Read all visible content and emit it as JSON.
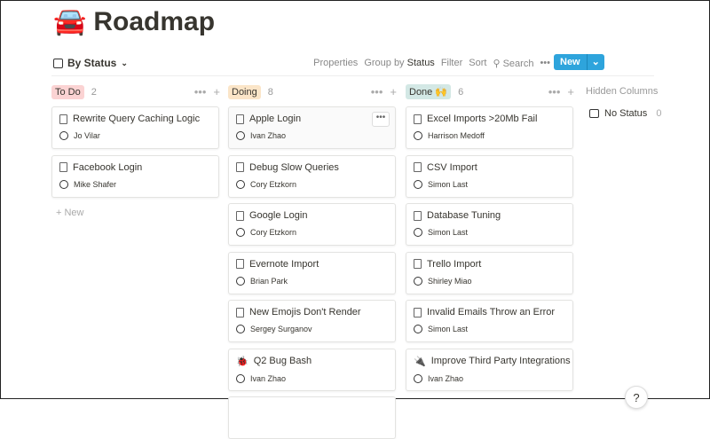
{
  "page": {
    "icon": "🚘",
    "title": "Roadmap"
  },
  "view": {
    "label": "By Status",
    "icon": "board-icon"
  },
  "toolbar": {
    "properties": "Properties",
    "group_by": "Group by",
    "group_value": "Status",
    "filter": "Filter",
    "sort": "Sort",
    "search": "Search",
    "more": "•••",
    "new": "New"
  },
  "columns": [
    {
      "label": "To Do",
      "count": "2",
      "color": "#fbd3d3",
      "cards": [
        {
          "title": "Rewrite Query Caching Logic",
          "person": "Jo Vilar",
          "icon": "📄"
        },
        {
          "title": "Facebook Login",
          "person": "Mike Shafer",
          "icon": "📄"
        }
      ],
      "add": "+ New"
    },
    {
      "label": "Doing",
      "count": "8",
      "color": "#fbe5c8",
      "cards": [
        {
          "title": "Apple Login",
          "person": "Ivan Zhao",
          "icon": "📄"
        },
        {
          "title": "Debug Slow Queries",
          "person": "Cory Etzkorn",
          "icon": "📄"
        },
        {
          "title": "Google Login",
          "person": "Cory Etzkorn",
          "icon": "📄"
        },
        {
          "title": "Evernote Import",
          "person": "Brian Park",
          "icon": "📄"
        },
        {
          "title": "New Emojis Don't Render",
          "person": "Sergey Surganov",
          "icon": "📄"
        },
        {
          "title": "Q2 Bug Bash",
          "person": "Ivan Zhao",
          "icon": "🐞"
        }
      ]
    },
    {
      "label": "Done 🙌",
      "count": "6",
      "color": "#d3e8e5",
      "cards": [
        {
          "title": "Excel Imports >20Mb Fail",
          "person": "Harrison Medoff",
          "icon": "📄"
        },
        {
          "title": "CSV Import",
          "person": "Simon Last",
          "icon": "📄"
        },
        {
          "title": "Database Tuning",
          "person": "Simon Last",
          "icon": "📄"
        },
        {
          "title": "Trello Import",
          "person": "Shirley Miao",
          "icon": "📄"
        },
        {
          "title": "Invalid Emails Throw an Error",
          "person": "Simon Last",
          "icon": "📄"
        },
        {
          "title": "Improve Third Party Integrations",
          "person": "Ivan Zhao",
          "icon": "🔌"
        }
      ]
    }
  ],
  "hidden": {
    "label": "Hidden Columns",
    "no_status": "No Status",
    "no_status_count": "0"
  },
  "help": "?"
}
